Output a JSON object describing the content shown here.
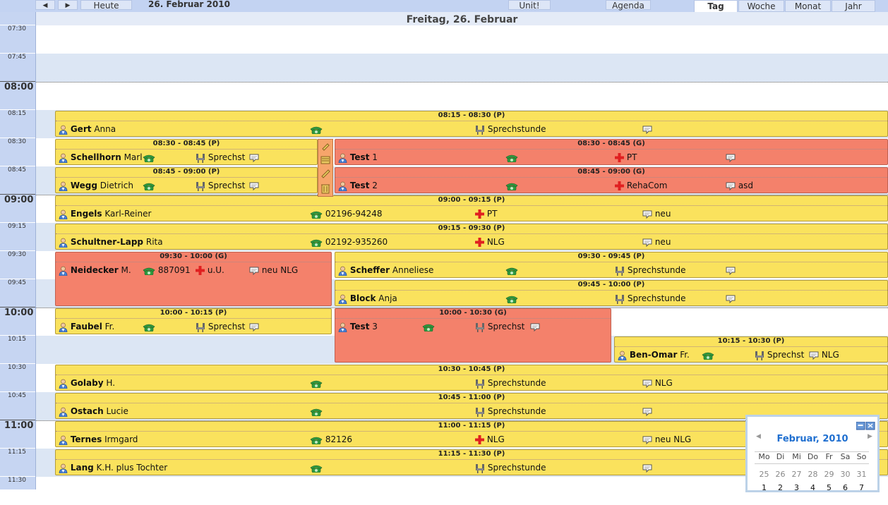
{
  "toolbar": {
    "prev": "◀",
    "next": "▶",
    "today": "Heute",
    "date": "26. Februar 2010",
    "unit": "Unit!",
    "agenda": "Agenda",
    "tabs": [
      "Tag",
      "Woche",
      "Monat",
      "Jahr"
    ]
  },
  "day_header": "Freitag, 26. Februar",
  "time_labels": [
    "07:30",
    "07:45",
    "08:00",
    "08:15",
    "08:30",
    "08:45",
    "09:00",
    "09:15",
    "09:30",
    "09:45",
    "10:00",
    "10:15",
    "10:30",
    "10:45",
    "11:00",
    "11:15",
    "11:30"
  ],
  "appointments": [
    {
      "time": "08:15 - 08:30 (P)",
      "last": "Gert",
      "first": "Anna",
      "phone": "",
      "cat": "",
      "room": "Sprechstunde",
      "note": ""
    },
    {
      "time": "08:30 - 08:45 (P)",
      "last": "Schellhorn",
      "first": "Marl",
      "phone": "",
      "cat": "",
      "room": "Sprechst",
      "note": ""
    },
    {
      "time": "08:30 - 08:45 (G)",
      "last": "Test",
      "first": "1",
      "phone": "",
      "cat": "PT",
      "room": "",
      "note": ""
    },
    {
      "time": "08:45 - 09:00 (P)",
      "last": "Wegg",
      "first": "Dietrich",
      "phone": "",
      "cat": "",
      "room": "Sprechst",
      "note": ""
    },
    {
      "time": "08:45 - 09:00 (G)",
      "last": "Test",
      "first": "2",
      "phone": "",
      "cat": "RehaCom",
      "room": "",
      "note": "asd"
    },
    {
      "time": "09:00 - 09:15 (P)",
      "last": "Engels",
      "first": "Karl-Reiner",
      "phone": "02196-94248",
      "cat": "PT",
      "room": "",
      "note": "neu"
    },
    {
      "time": "09:15 - 09:30 (P)",
      "last": "Schultner-Lapp",
      "first": "Rita",
      "phone": "02192-935260",
      "cat": "NLG",
      "room": "",
      "note": "neu"
    },
    {
      "time": "09:30 - 10:00 (G)",
      "last": "Neidecker",
      "first": "M.",
      "phone": "887091",
      "cat": "u.U.",
      "room": "",
      "note": "neu NLG"
    },
    {
      "time": "09:30 - 09:45 (P)",
      "last": "Scheffer",
      "first": "Anneliese",
      "phone": "",
      "cat": "",
      "room": "Sprechstunde",
      "note": ""
    },
    {
      "time": "09:45 - 10:00 (P)",
      "last": "Block",
      "first": "Anja",
      "phone": "",
      "cat": "",
      "room": "Sprechstunde",
      "note": ""
    },
    {
      "time": "10:00 - 10:15 (P)",
      "last": "Faubel",
      "first": "Fr.",
      "phone": "",
      "cat": "",
      "room": "Sprechst",
      "note": ""
    },
    {
      "time": "10:00 - 10:30 (G)",
      "last": "Test",
      "first": "3",
      "phone": "",
      "cat": "",
      "room": "Sprechst",
      "note": ""
    },
    {
      "time": "10:15 - 10:30 (P)",
      "last": "Ben-Omar",
      "first": "Fr.",
      "phone": "",
      "cat": "",
      "room": "Sprechst",
      "note": "NLG"
    },
    {
      "time": "10:30 - 10:45 (P)",
      "last": "Golaby",
      "first": "H.",
      "phone": "",
      "cat": "",
      "room": "Sprechstunde",
      "note": "NLG"
    },
    {
      "time": "10:45 - 11:00 (P)",
      "last": "Ostach",
      "first": "Lucie",
      "phone": "",
      "cat": "",
      "room": "Sprechstunde",
      "note": ""
    },
    {
      "time": "11:00 - 11:15 (P)",
      "last": "Ternes",
      "first": "Irmgard",
      "phone": "82126",
      "cat": "NLG",
      "room": "",
      "note": "neu NLG"
    },
    {
      "time": "11:15 - 11:30 (P)",
      "last": "Lang",
      "first": "K.H. plus Tochter",
      "phone": "",
      "cat": "",
      "room": "Sprechstunde",
      "note": ""
    }
  ],
  "mini_calendar": {
    "title": "Februar, 2010",
    "weekdays": [
      "Mo",
      "Di",
      "Mi",
      "Do",
      "Fr",
      "Sa",
      "So"
    ],
    "week1": [
      "25",
      "26",
      "27",
      "28",
      "29",
      "30",
      "31"
    ],
    "week2": [
      "1",
      "2",
      "3",
      "4",
      "5",
      "6",
      "7"
    ]
  },
  "colors": {
    "private": "#fae25d",
    "group": "#f4816b",
    "accent": "#1f6fd0"
  }
}
